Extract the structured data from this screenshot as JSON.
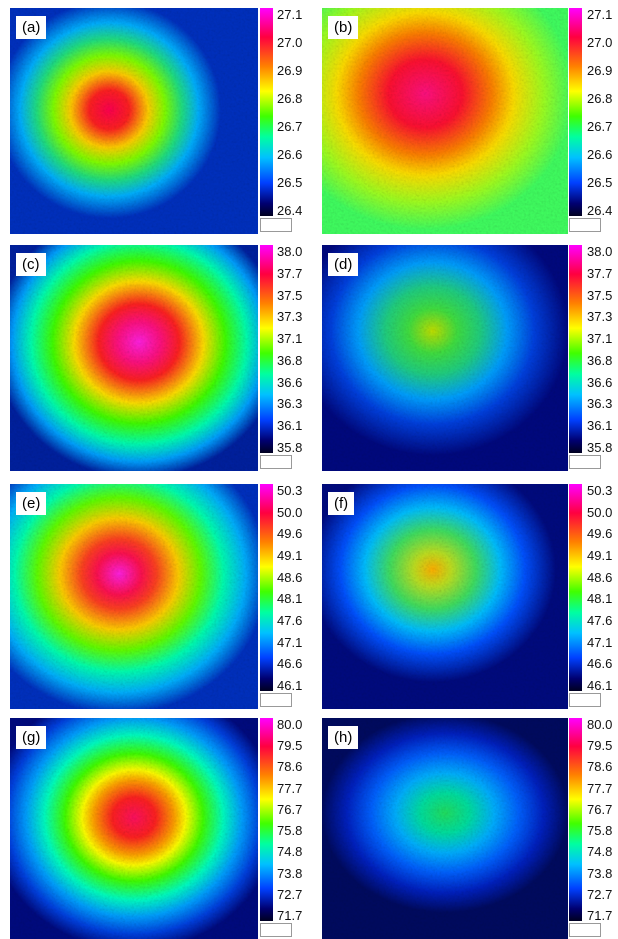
{
  "panels": [
    {
      "label": "(a)",
      "ticks": [
        "27.1",
        "27.0",
        "26.9",
        "26.8",
        "26.7",
        "26.6",
        "26.5",
        "26.4"
      ]
    },
    {
      "label": "(b)",
      "ticks": [
        "27.1",
        "27.0",
        "26.9",
        "26.8",
        "26.7",
        "26.6",
        "26.5",
        "26.4"
      ]
    },
    {
      "label": "(c)",
      "ticks": [
        "38.0",
        "37.7",
        "37.5",
        "37.3",
        "37.1",
        "36.8",
        "36.6",
        "36.3",
        "36.1",
        "35.8"
      ]
    },
    {
      "label": "(d)",
      "ticks": [
        "38.0",
        "37.7",
        "37.5",
        "37.3",
        "37.1",
        "36.8",
        "36.6",
        "36.3",
        "36.1",
        "35.8"
      ]
    },
    {
      "label": "(e)",
      "ticks": [
        "50.3",
        "50.0",
        "49.6",
        "49.1",
        "48.6",
        "48.1",
        "47.6",
        "47.1",
        "46.6",
        "46.1"
      ]
    },
    {
      "label": "(f)",
      "ticks": [
        "50.3",
        "50.0",
        "49.6",
        "49.1",
        "48.6",
        "48.1",
        "47.6",
        "47.1",
        "46.6",
        "46.1"
      ]
    },
    {
      "label": "(g)",
      "ticks": [
        "80.0",
        "79.5",
        "78.6",
        "77.7",
        "76.7",
        "75.8",
        "74.8",
        "73.8",
        "72.7",
        "71.7"
      ]
    },
    {
      "label": "(h)",
      "ticks": [
        "80.0",
        "79.5",
        "78.6",
        "77.7",
        "76.7",
        "75.8",
        "74.8",
        "73.8",
        "72.7",
        "71.7"
      ]
    }
  ]
}
